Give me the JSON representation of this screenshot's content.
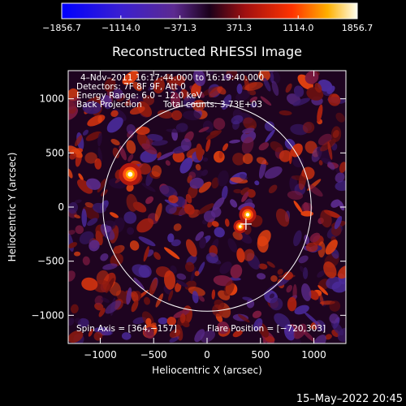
{
  "chart_data": {
    "type": "heatmap",
    "title": "Reconstructed RHESSI Image",
    "xlabel": "Heliocentric X (arcsec)",
    "ylabel": "Heliocentric Y (arcsec)",
    "xlim": [
      -1300,
      1300
    ],
    "ylim": [
      -1260,
      1260
    ],
    "x_ticks": [
      -1000,
      -500,
      0,
      500,
      1000
    ],
    "y_ticks": [
      1000,
      500,
      0,
      -500,
      -1000
    ],
    "x_tick_labels": [
      "−1000",
      "−500",
      "0",
      "500",
      "1000"
    ],
    "y_tick_labels": [
      "1000",
      "500",
      "0",
      "−500",
      "−1000"
    ],
    "colorbar": {
      "ticks": [
        -1856.7,
        -1114.0,
        -371.3,
        371.3,
        1114.0,
        1856.7
      ],
      "tick_labels": [
        "−1856.7",
        "−1114.0",
        "−371.3",
        "371.3",
        "1114.0",
        "1856.7"
      ],
      "range": [
        -1856.7,
        1856.7
      ]
    },
    "info_lines": [
      "4–Nov–2011 16:17:44.000 to 16:19:40.000",
      "Detectors: 7F 8F 9F, Att 0",
      "Energy Range: 6.0 – 12.0 keV",
      "Back Projection",
      "Total counts: 3.73E+03"
    ],
    "spin_axis_label": "Spin Axis = [364,−157]",
    "flare_position_label": "Flare Position = [−720,303]",
    "spin_axis": [
      364,
      -157
    ],
    "flare_position": [
      -720,
      303
    ],
    "solar_disk": {
      "center": [
        0,
        0
      ],
      "radius": 975
    },
    "sources": [
      {
        "x": -720,
        "y": 303,
        "value": 1856.7
      },
      {
        "x": 380,
        "y": -70,
        "value": 1400
      },
      {
        "x": 310,
        "y": -180,
        "value": 1100
      }
    ]
  },
  "timestamp": "15–May–2022 20:45",
  "colors": {
    "background": "#000000",
    "foreground": "#ffffff",
    "negative_high": "#0000ff",
    "neutral": "#220022",
    "positive_high": "#ffffa0"
  }
}
